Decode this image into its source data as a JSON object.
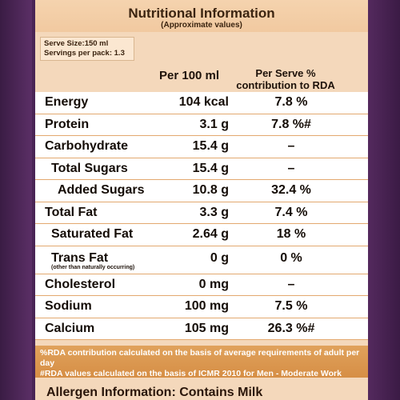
{
  "header": {
    "title": "Nutritional Information",
    "subtitle": "(Approximate values)"
  },
  "serving": {
    "size": "Serve Size:150 ml",
    "per_pack": "Servings per pack: 1.3"
  },
  "columns": {
    "per100": "Per 100 ml",
    "rda": "Per Serve % contribution to RDA"
  },
  "rows": [
    {
      "name": "Energy",
      "amount": "104 kcal",
      "rda": "7.8 %"
    },
    {
      "name": "Protein",
      "amount": "3.1 g",
      "rda": "7.8 %#"
    },
    {
      "name": "Carbohydrate",
      "amount": "15.4 g",
      "rda": "–"
    },
    {
      "name": "Total Sugars",
      "amount": "15.4 g",
      "rda": "–"
    },
    {
      "name": "Added Sugars",
      "amount": "10.8 g",
      "rda": "32.4 %"
    },
    {
      "name": "Total Fat",
      "amount": "3.3 g",
      "rda": "7.4 %"
    },
    {
      "name": "Saturated Fat",
      "amount": "2.64 g",
      "rda": "18 %"
    },
    {
      "name": "Trans Fat",
      "note": "(other than naturally occurring)",
      "amount": "0 g",
      "rda": "0 %"
    },
    {
      "name": "Cholesterol",
      "amount": "0 mg",
      "rda": "–"
    },
    {
      "name": "Sodium",
      "amount": "100 mg",
      "rda": "7.5 %"
    },
    {
      "name": "Calcium",
      "amount": "105 mg",
      "rda": "26.3 %#"
    }
  ],
  "footnotes": {
    "line1": "%RDA contribution calculated on the basis of average requirements of adult per day",
    "line2": "#RDA values calculated on the basis of ICMR 2010 for Men - Moderate Work"
  },
  "allergen": "Allergen Information: Contains Milk"
}
